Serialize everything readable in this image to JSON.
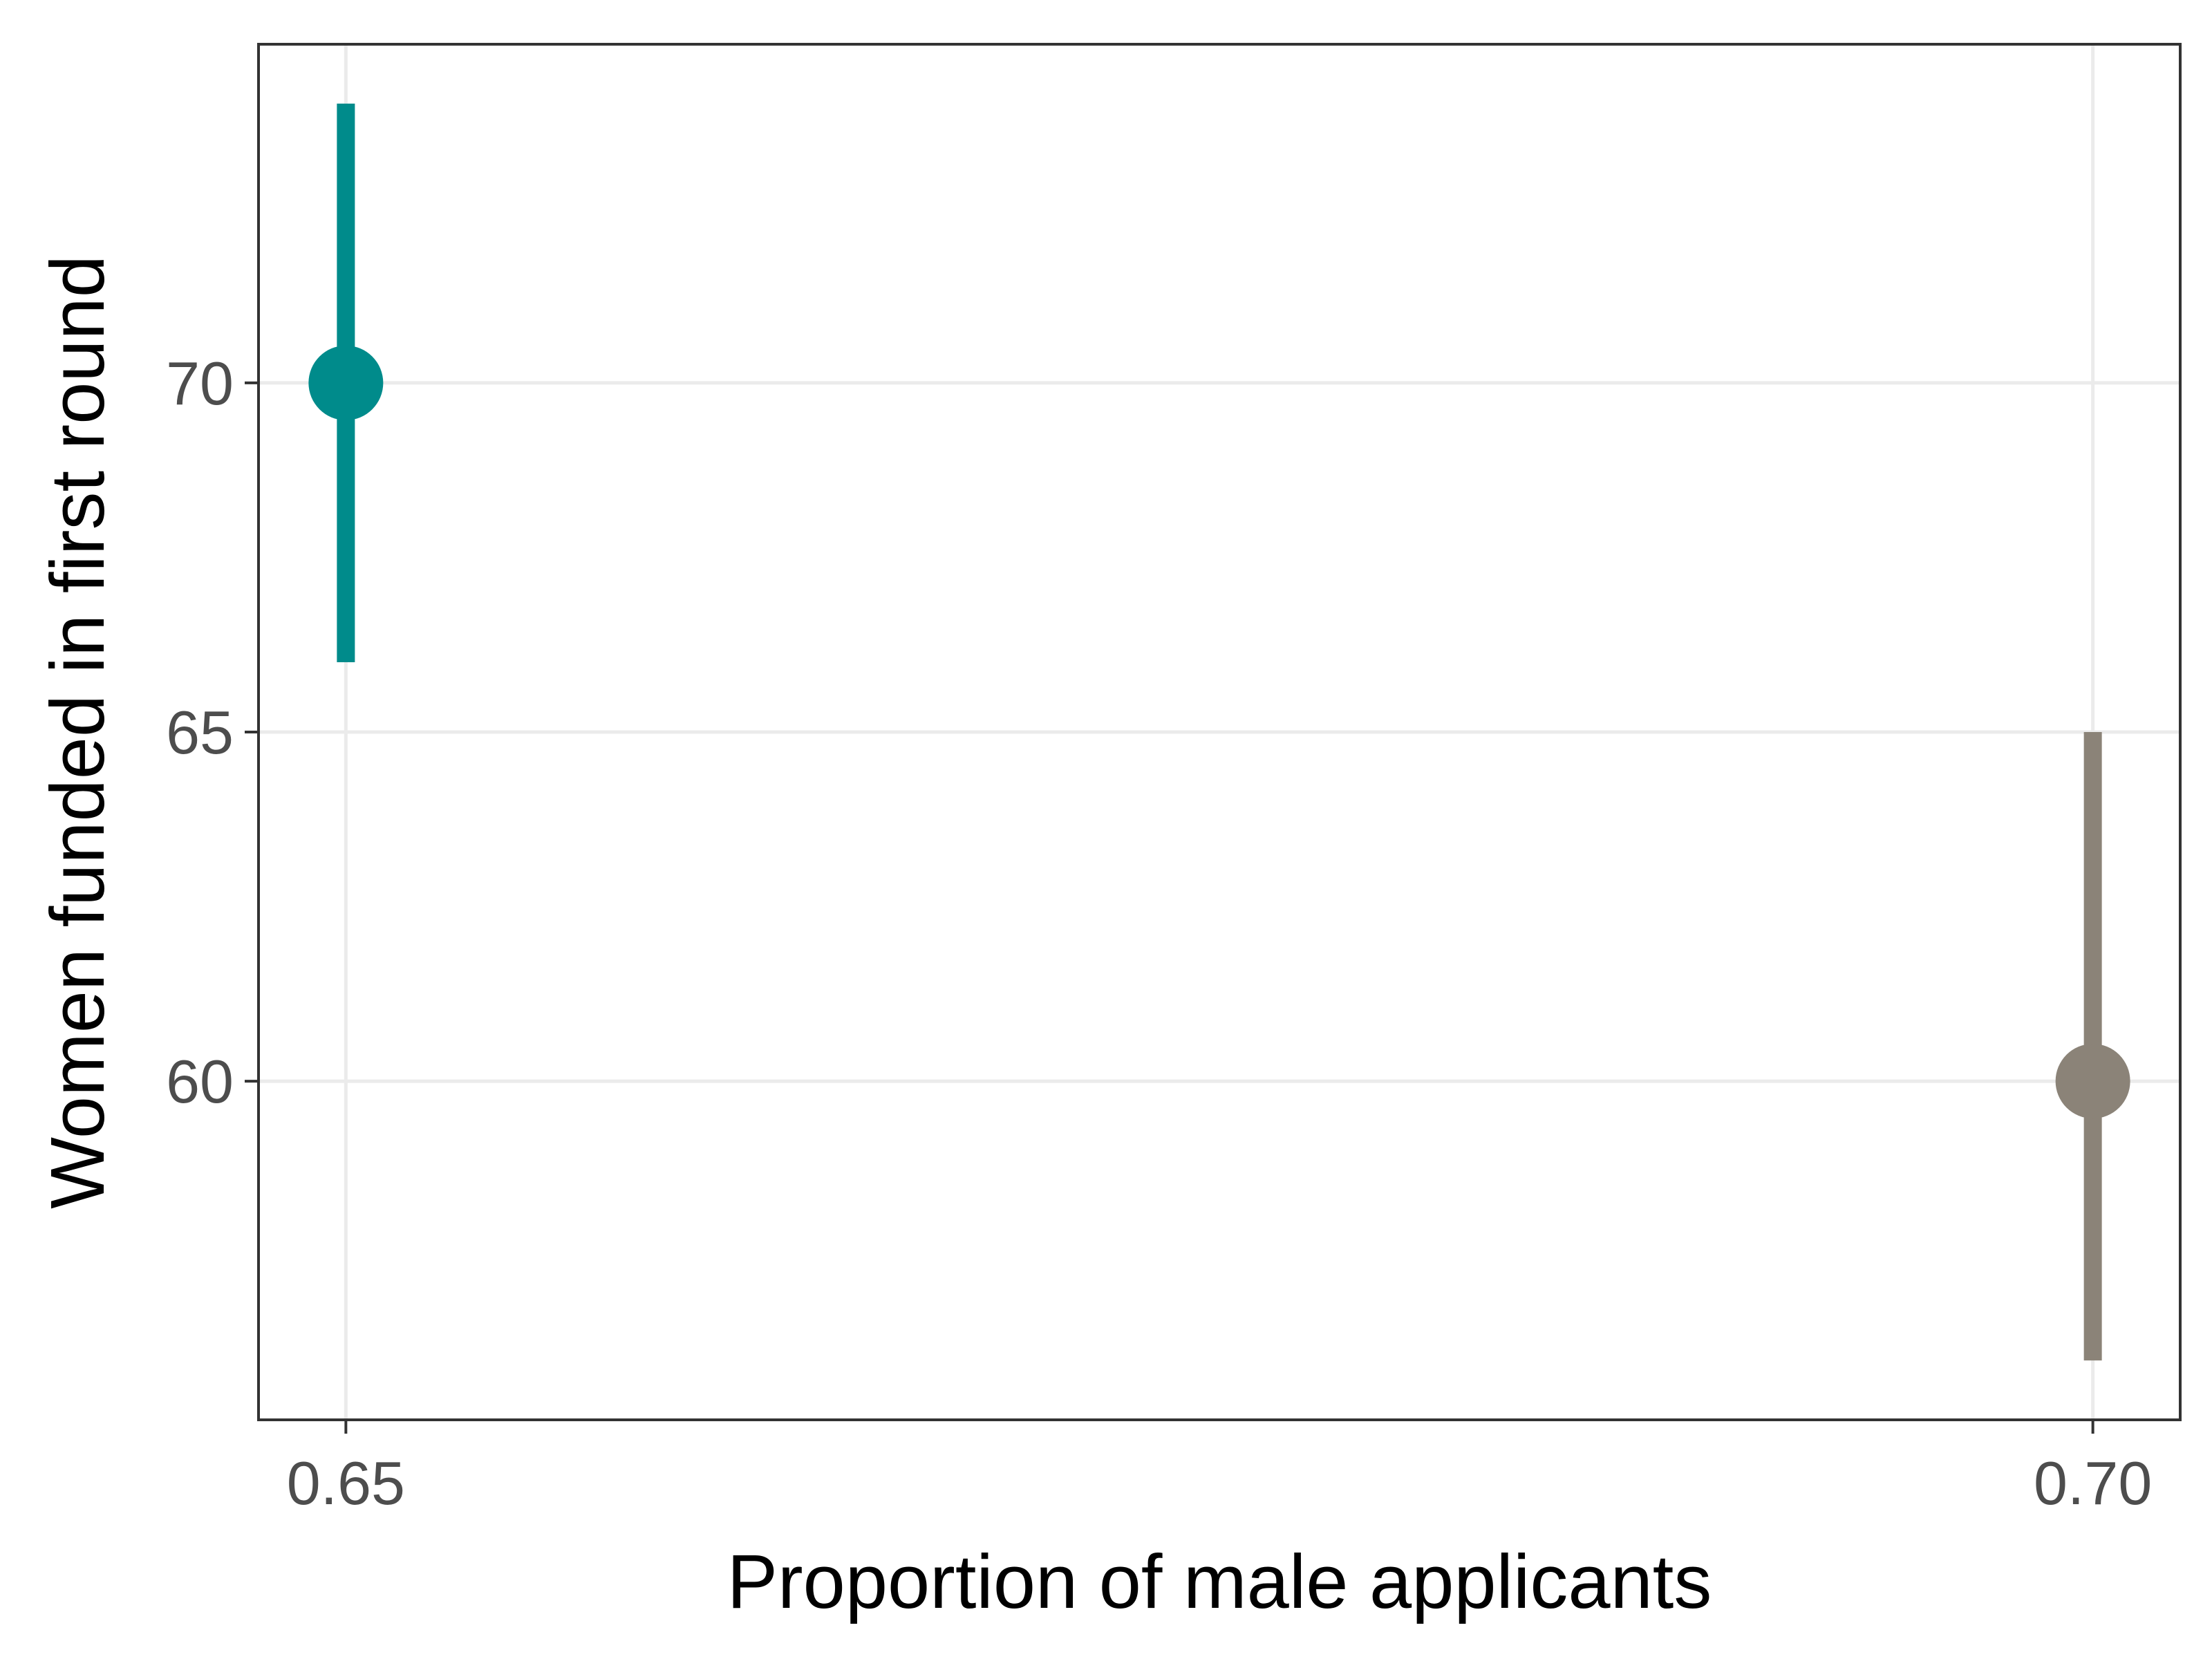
{
  "chart_data": {
    "type": "scatter",
    "xlabel": "Proportion of male applicants",
    "ylabel": "Women funded in first round",
    "xlim": [
      0.6475,
      0.7025
    ],
    "ylim": [
      55.15,
      74.85
    ],
    "x_ticks": [
      0.65,
      0.7
    ],
    "x_tick_labels": [
      "0.65",
      "0.70"
    ],
    "y_ticks": [
      60,
      65,
      70
    ],
    "y_tick_labels": [
      "60",
      "65",
      "70"
    ],
    "grid": true,
    "points": [
      {
        "x": 0.65,
        "y": 70,
        "ymin": 66,
        "ymax": 74,
        "color": "#008b8b"
      },
      {
        "x": 0.7,
        "y": 60,
        "ymin": 56,
        "ymax": 65,
        "color": "#8b8378"
      }
    ]
  },
  "colors": {
    "grid": "#ebebeb",
    "panel_border": "#333333",
    "tick_mark": "#333333",
    "tick_label": "#4d4d4d"
  }
}
